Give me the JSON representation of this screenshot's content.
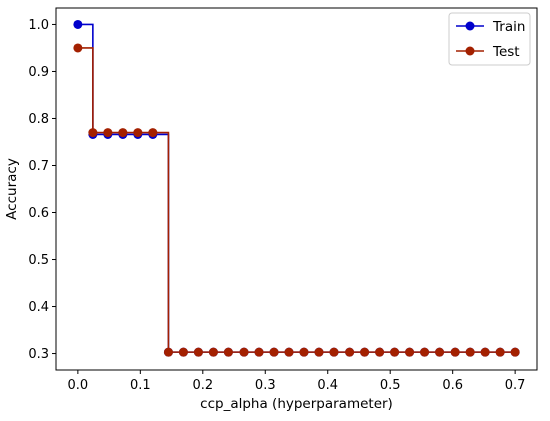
{
  "chart_data": {
    "type": "line",
    "step": "post",
    "title": "",
    "xlabel": "ccp_alpha (hyperparameter)",
    "ylabel": "Accuracy",
    "xlim": [
      -0.035,
      0.735
    ],
    "ylim": [
      0.265,
      1.035
    ],
    "xticks": [
      0.0,
      0.1,
      0.2,
      0.3,
      0.4,
      0.5,
      0.6,
      0.7
    ],
    "xtick_labels": [
      "0.0",
      "0.1",
      "0.2",
      "0.3",
      "0.4",
      "0.5",
      "0.6",
      "0.7"
    ],
    "yticks": [
      0.3,
      0.4,
      0.5,
      0.6,
      0.7,
      0.8,
      0.9,
      1.0
    ],
    "ytick_labels": [
      "0.3",
      "0.4",
      "0.5",
      "0.6",
      "0.7",
      "0.8",
      "0.9",
      "1.0"
    ],
    "grid": false,
    "legend_position": "top-right",
    "series": [
      {
        "name": "Train",
        "color": "#0000cc",
        "x": [
          0.0,
          0.024,
          0.048,
          0.072,
          0.096,
          0.12,
          0.145,
          0.169,
          0.193,
          0.217,
          0.241,
          0.266,
          0.29,
          0.314,
          0.338,
          0.362,
          0.386,
          0.41,
          0.435,
          0.459,
          0.483,
          0.507,
          0.531,
          0.555,
          0.579,
          0.604,
          0.628,
          0.652,
          0.676,
          0.7
        ],
        "values": [
          1.0,
          0.766,
          0.766,
          0.766,
          0.766,
          0.766,
          0.303,
          0.303,
          0.303,
          0.303,
          0.303,
          0.303,
          0.303,
          0.303,
          0.303,
          0.303,
          0.303,
          0.303,
          0.303,
          0.303,
          0.303,
          0.303,
          0.303,
          0.303,
          0.303,
          0.303,
          0.303,
          0.303,
          0.303,
          0.303
        ]
      },
      {
        "name": "Test",
        "color": "#a32000",
        "x": [
          0.0,
          0.024,
          0.048,
          0.072,
          0.096,
          0.12,
          0.145,
          0.169,
          0.193,
          0.217,
          0.241,
          0.266,
          0.29,
          0.314,
          0.338,
          0.362,
          0.386,
          0.41,
          0.435,
          0.459,
          0.483,
          0.507,
          0.531,
          0.555,
          0.579,
          0.604,
          0.628,
          0.652,
          0.676,
          0.7
        ],
        "values": [
          0.95,
          0.77,
          0.77,
          0.77,
          0.77,
          0.77,
          0.303,
          0.303,
          0.303,
          0.303,
          0.303,
          0.303,
          0.303,
          0.303,
          0.303,
          0.303,
          0.303,
          0.303,
          0.303,
          0.303,
          0.303,
          0.303,
          0.303,
          0.303,
          0.303,
          0.303,
          0.303,
          0.303,
          0.303,
          0.303
        ]
      }
    ]
  }
}
